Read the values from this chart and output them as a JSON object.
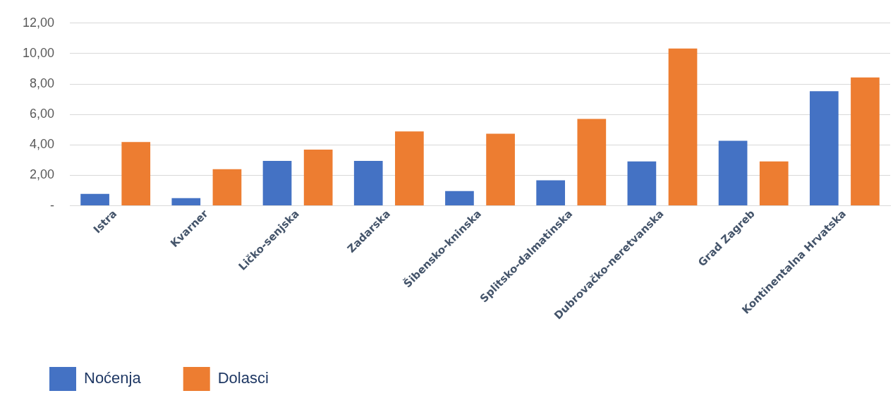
{
  "chart_data": {
    "type": "bar",
    "categories": [
      "Istra",
      "Kvarner",
      "Ličko-senjska",
      "Zadarska",
      "Šibensko-kninska",
      "Splitsko-dalmatinska",
      "Dubrovačko-neretvanska",
      "Grad Zagreb",
      "Kontinentalna Hrvatska"
    ],
    "series": [
      {
        "name": "Noćenja",
        "color": "#4472c4",
        "values": [
          0.78,
          0.5,
          2.95,
          2.95,
          0.97,
          1.67,
          2.91,
          4.27,
          7.53
        ]
      },
      {
        "name": "Dolasci",
        "color": "#ed7d31",
        "values": [
          4.19,
          2.41,
          3.69,
          4.89,
          4.74,
          5.71,
          10.33,
          2.91,
          8.43
        ]
      }
    ],
    "ylim": [
      0,
      12
    ],
    "yticks": [
      {
        "value": 0,
        "label": "-"
      },
      {
        "value": 2,
        "label": "2,00"
      },
      {
        "value": 4,
        "label": "4,00"
      },
      {
        "value": 6,
        "label": "6,00"
      },
      {
        "value": 8,
        "label": "8,00"
      },
      {
        "value": 10,
        "label": "10,00"
      },
      {
        "value": 12,
        "label": "12,00"
      }
    ],
    "grid": "y",
    "legend": "bottom left"
  }
}
